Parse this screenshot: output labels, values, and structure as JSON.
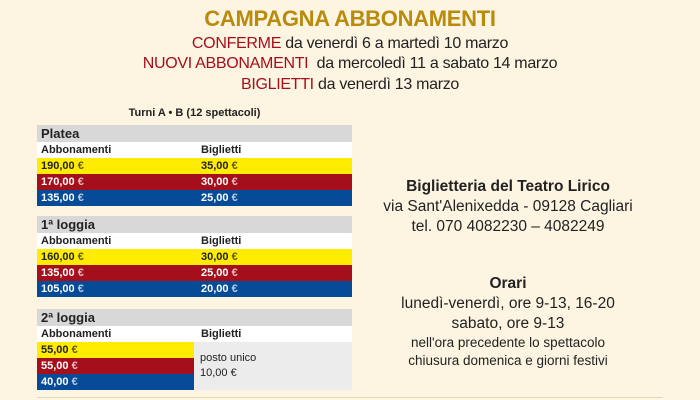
{
  "header": {
    "title": "CAMPAGNA ABBONAMENTI",
    "lines": [
      {
        "highlight": "CONFERME",
        "text": " da venerdì 6 a martedì 10 marzo"
      },
      {
        "highlight": "NUOVI ABBONAMENTI",
        "text": "  da mercoledì 11 a sabato 14 marzo"
      },
      {
        "highlight": "BIGLIETTI",
        "text": " da venerdì 13 marzo"
      }
    ]
  },
  "turni": "Turni A • B (12 spettacoli)",
  "tables": [
    {
      "name": "Platea",
      "col1": "Abbonamenti",
      "col2": "Biglietti",
      "rows": [
        [
          "190,00",
          "35,00"
        ],
        [
          "170,00",
          "30,00"
        ],
        [
          "135,00",
          "25,00"
        ]
      ]
    },
    {
      "name": "1ª loggia",
      "col1": "Abbonamenti",
      "col2": "Biglietti",
      "rows": [
        [
          "160,00",
          "30,00"
        ],
        [
          "135,00",
          "25,00"
        ],
        [
          "105,00",
          "20,00"
        ]
      ]
    },
    {
      "name": "2ª loggia",
      "col1": "Abbonamenti",
      "col2": "Biglietti",
      "rows": [
        [
          "55,00"
        ],
        [
          "55,00"
        ],
        [
          "40,00"
        ]
      ],
      "single_label": "posto unico",
      "single_price": "10,00"
    }
  ],
  "currency": "€",
  "colors": {
    "yellow": "#ffec00",
    "red": "#a50f1c",
    "blue": "#064b98",
    "gold": "#b98b0d"
  },
  "box_office": {
    "title": "Biglietteria del Teatro Lirico",
    "address": "via Sant'Alenixedda - 09128 Cagliari",
    "phone": "tel. 070 4082230 – 4082249"
  },
  "hours": {
    "title": "Orari",
    "lines": [
      "lunedì-venerdì, ore 9-13, 16-20",
      "sabato, ore 9-13",
      "nell'ora precedente lo spettacolo",
      "chiusura domenica e giorni festivi"
    ]
  }
}
